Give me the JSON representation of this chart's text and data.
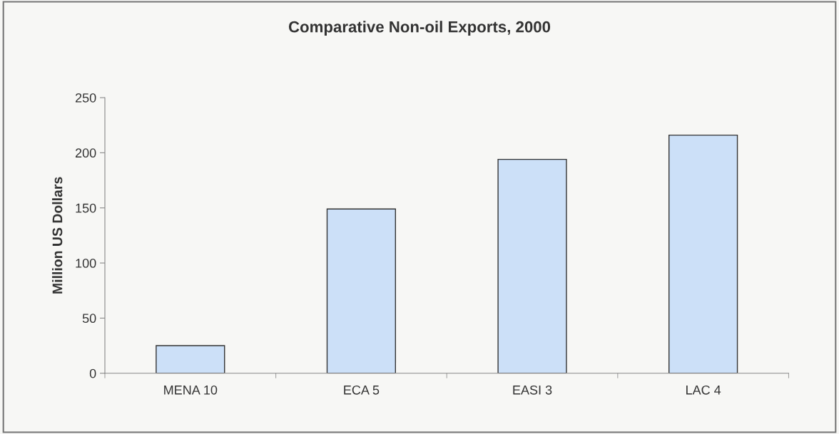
{
  "chart_data": {
    "type": "bar",
    "title": "Comparative Non-oil Exports, 2000",
    "ylabel": "Million US Dollars",
    "categories": [
      "MENA 10",
      "ECA 5",
      "EASI 3",
      "LAC 4"
    ],
    "values": [
      25,
      149,
      194,
      216
    ],
    "color": "#cce0f8",
    "ylim": [
      0,
      250
    ],
    "yticks": [
      0,
      50,
      100,
      150,
      200,
      250
    ],
    "grid": false,
    "legend": false
  }
}
